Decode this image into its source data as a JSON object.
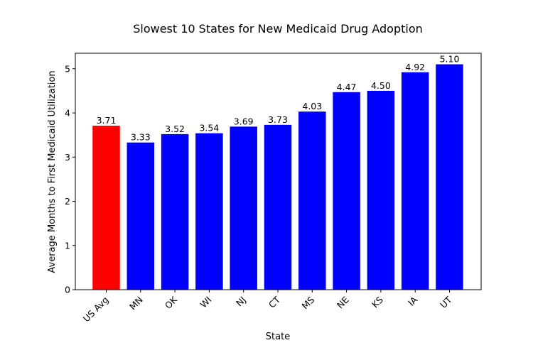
{
  "chart_data": {
    "type": "bar",
    "title": "Slowest 10 States for New Medicaid Drug Adoption",
    "xlabel": "State",
    "ylabel": "Average Months to First Medicaid Utilization",
    "categories": [
      "US Avg",
      "MN",
      "OK",
      "WI",
      "NJ",
      "CT",
      "MS",
      "NE",
      "KS",
      "IA",
      "UT"
    ],
    "values": [
      3.71,
      3.33,
      3.52,
      3.54,
      3.69,
      3.73,
      4.03,
      4.47,
      4.5,
      4.92,
      5.1
    ],
    "value_labels": [
      "3.71",
      "3.33",
      "3.52",
      "3.54",
      "3.69",
      "3.73",
      "4.03",
      "4.47",
      "4.50",
      "4.92",
      "5.10"
    ],
    "colors": [
      "#ff0000",
      "#0000ff",
      "#0000ff",
      "#0000ff",
      "#0000ff",
      "#0000ff",
      "#0000ff",
      "#0000ff",
      "#0000ff",
      "#0000ff",
      "#0000ff"
    ],
    "ylim": [
      0,
      5.35
    ],
    "yticks": [
      0,
      1,
      2,
      3,
      4,
      5
    ],
    "ytick_labels": [
      "0",
      "1",
      "2",
      "3",
      "4",
      "5"
    ],
    "grid": false,
    "legend": "none"
  }
}
